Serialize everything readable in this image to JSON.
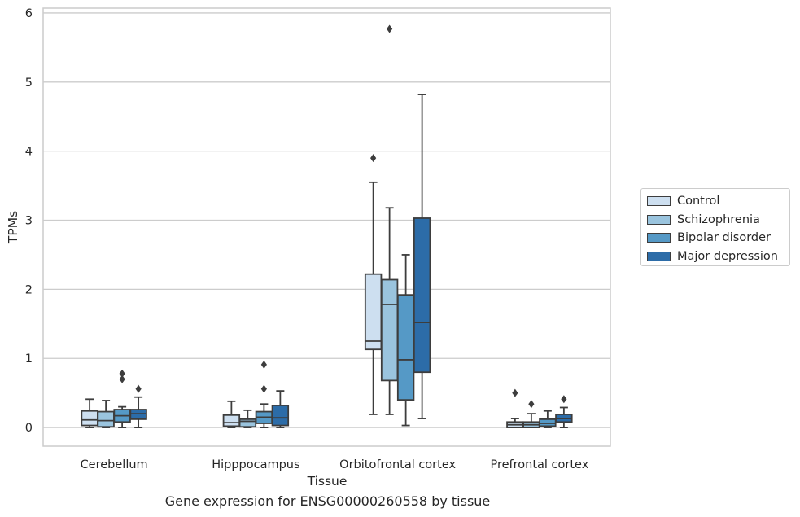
{
  "chart_data": {
    "type": "box",
    "title": "",
    "caption": "Gene expression for ENSG00000260558 by tissue",
    "xlabel": "Tissue",
    "ylabel": "TPMs",
    "ylim": [
      -0.27,
      6.07
    ],
    "yticks": [
      0,
      1,
      2,
      3,
      4,
      5,
      6
    ],
    "grid": true,
    "legend_position": "right",
    "categories": [
      "Cerebellum",
      "Hipppocampus",
      "Orbitofrontal cortex",
      "Prefrontal cortex"
    ],
    "series": [
      {
        "name": "Control",
        "color": "#cddff0",
        "boxes": [
          {
            "min": 0.0,
            "q1": 0.03,
            "median": 0.11,
            "q3": 0.24,
            "max": 0.41,
            "outliers": []
          },
          {
            "min": 0.0,
            "q1": 0.02,
            "median": 0.07,
            "q3": 0.18,
            "max": 0.38,
            "outliers": []
          },
          {
            "min": 0.19,
            "q1": 1.13,
            "median": 1.25,
            "q3": 2.22,
            "max": 3.55,
            "outliers": [
              3.9
            ]
          },
          {
            "min": 0.0,
            "q1": 0.0,
            "median": 0.04,
            "q3": 0.08,
            "max": 0.13,
            "outliers": [
              0.5
            ]
          }
        ]
      },
      {
        "name": "Schizophrenia",
        "color": "#9ac4de",
        "boxes": [
          {
            "min": 0.0,
            "q1": 0.01,
            "median": 0.1,
            "q3": 0.23,
            "max": 0.39,
            "outliers": []
          },
          {
            "min": 0.0,
            "q1": 0.01,
            "median": 0.09,
            "q3": 0.12,
            "max": 0.25,
            "outliers": []
          },
          {
            "min": 0.19,
            "q1": 0.68,
            "median": 1.78,
            "q3": 2.14,
            "max": 3.18,
            "outliers": [
              5.77
            ]
          },
          {
            "min": 0.0,
            "q1": 0.0,
            "median": 0.04,
            "q3": 0.08,
            "max": 0.2,
            "outliers": [
              0.34
            ]
          }
        ]
      },
      {
        "name": "Bipolar disorder",
        "color": "#5599c6",
        "boxes": [
          {
            "min": 0.0,
            "q1": 0.08,
            "median": 0.17,
            "q3": 0.26,
            "max": 0.3,
            "outliers": [
              0.7,
              0.78
            ]
          },
          {
            "min": 0.0,
            "q1": 0.06,
            "median": 0.15,
            "q3": 0.23,
            "max": 0.34,
            "outliers": [
              0.56,
              0.91
            ]
          },
          {
            "min": 0.03,
            "q1": 0.4,
            "median": 0.98,
            "q3": 1.92,
            "max": 2.5,
            "outliers": []
          },
          {
            "min": 0.0,
            "q1": 0.02,
            "median": 0.06,
            "q3": 0.12,
            "max": 0.24,
            "outliers": []
          }
        ]
      },
      {
        "name": "Major depression",
        "color": "#2c6ca8",
        "boxes": [
          {
            "min": 0.0,
            "q1": 0.12,
            "median": 0.2,
            "q3": 0.26,
            "max": 0.44,
            "outliers": [
              0.56
            ]
          },
          {
            "min": 0.0,
            "q1": 0.03,
            "median": 0.14,
            "q3": 0.32,
            "max": 0.53,
            "outliers": []
          },
          {
            "min": 0.13,
            "q1": 0.8,
            "median": 1.52,
            "q3": 3.03,
            "max": 4.82,
            "outliers": []
          },
          {
            "min": 0.0,
            "q1": 0.08,
            "median": 0.13,
            "q3": 0.19,
            "max": 0.29,
            "outliers": [
              0.41
            ]
          }
        ]
      }
    ]
  }
}
